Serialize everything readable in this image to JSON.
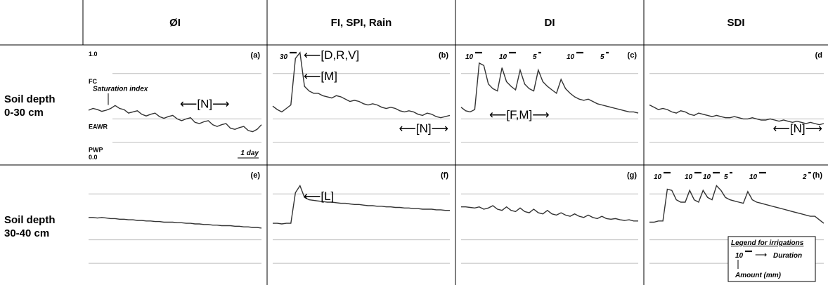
{
  "chart_data": {
    "type": "line",
    "columns": [
      "ØI",
      "FI, SPI, Rain",
      "DI",
      "SDI"
    ],
    "rows": [
      "Soil depth\n0-30 cm",
      "Soil depth\n30-40 cm"
    ],
    "levels": {
      "top": "1.0",
      "bottom": "0.0",
      "names": [
        "FC",
        "EAWR",
        "PWP"
      ],
      "fractions": [
        0.77,
        0.38,
        0.18
      ]
    },
    "scale_label": "1 day",
    "saturation_label": "Saturation index",
    "legend": {
      "title": "Legend for irrigations",
      "example_amount": "10",
      "duration_label": "Duration",
      "amount_label": "Amount (mm)"
    },
    "panels": [
      {
        "id": "a",
        "label": "(a)",
        "values": [
          0.455,
          0.47,
          0.46,
          0.445,
          0.455,
          0.47,
          0.495,
          0.47,
          0.46,
          0.43,
          0.44,
          0.45,
          0.42,
          0.405,
          0.42,
          0.43,
          0.4,
          0.385,
          0.4,
          0.41,
          0.38,
          0.365,
          0.38,
          0.39,
          0.35,
          0.34,
          0.355,
          0.365,
          0.33,
          0.315,
          0.33,
          0.34,
          0.3,
          0.29,
          0.305,
          0.315,
          0.28,
          0.27,
          0.29,
          0.33
        ],
        "annotations": [
          {
            "text": "⟵[N]⟶",
            "pos": "right-middle"
          }
        ]
      },
      {
        "id": "b",
        "label": "(b)",
        "values": [
          0.49,
          0.46,
          0.44,
          0.47,
          0.5,
          0.9,
          0.95,
          0.66,
          0.62,
          0.6,
          0.6,
          0.58,
          0.57,
          0.56,
          0.58,
          0.57,
          0.55,
          0.53,
          0.54,
          0.53,
          0.51,
          0.5,
          0.51,
          0.5,
          0.48,
          0.47,
          0.48,
          0.47,
          0.45,
          0.44,
          0.45,
          0.44,
          0.42,
          0.41,
          0.43,
          0.42,
          0.4,
          0.39,
          0.4,
          0.41
        ],
        "irrigations": [
          {
            "amount": "30",
            "duration": "long"
          }
        ],
        "annotations": [
          {
            "text": "⟵[D,R,V]",
            "pos": "top"
          },
          {
            "text": "⟵[M]",
            "pos": "upper"
          },
          {
            "text": "⟵[N]⟶",
            "pos": "lower-right"
          }
        ]
      },
      {
        "id": "c",
        "label": "(c)",
        "values": [
          0.48,
          0.45,
          0.44,
          0.46,
          0.86,
          0.84,
          0.68,
          0.64,
          0.62,
          0.82,
          0.7,
          0.66,
          0.63,
          0.8,
          0.68,
          0.64,
          0.62,
          0.8,
          0.7,
          0.66,
          0.63,
          0.6,
          0.72,
          0.64,
          0.6,
          0.57,
          0.55,
          0.54,
          0.55,
          0.53,
          0.51,
          0.5,
          0.49,
          0.48,
          0.47,
          0.46,
          0.45,
          0.44,
          0.44,
          0.43
        ],
        "irrigations": [
          {
            "amount": "10",
            "duration": "long"
          },
          {
            "amount": "10",
            "duration": "long"
          },
          {
            "amount": "5",
            "duration": "short"
          },
          {
            "amount": "10",
            "duration": "long"
          },
          {
            "amount": "5",
            "duration": "short"
          }
        ],
        "annotations": [
          {
            "text": "⟵[F,M]⟶",
            "pos": "middle"
          }
        ]
      },
      {
        "id": "d",
        "label": "(d",
        "values": [
          0.5,
          0.48,
          0.46,
          0.47,
          0.46,
          0.44,
          0.43,
          0.45,
          0.44,
          0.42,
          0.41,
          0.43,
          0.42,
          0.41,
          0.4,
          0.41,
          0.4,
          0.39,
          0.39,
          0.4,
          0.39,
          0.38,
          0.38,
          0.39,
          0.38,
          0.37,
          0.37,
          0.38,
          0.37,
          0.36,
          0.37,
          0.36,
          0.35,
          0.36,
          0.35,
          0.34,
          0.35,
          0.34,
          0.33,
          0.34
        ],
        "annotations": [
          {
            "text": "⟵[N]⟶",
            "pos": "lower-right"
          }
        ]
      },
      {
        "id": "e",
        "label": "(e)",
        "values": [
          0.57,
          0.57,
          0.565,
          0.57,
          0.565,
          0.56,
          0.56,
          0.555,
          0.555,
          0.55,
          0.55,
          0.545,
          0.545,
          0.54,
          0.54,
          0.535,
          0.535,
          0.53,
          0.53,
          0.53,
          0.525,
          0.525,
          0.52,
          0.52,
          0.515,
          0.515,
          0.51,
          0.51,
          0.505,
          0.505,
          0.5,
          0.5,
          0.5,
          0.495,
          0.495,
          0.49,
          0.49,
          0.485,
          0.485,
          0.48
        ],
        "annotations": []
      },
      {
        "id": "f",
        "label": "(f)",
        "values": [
          0.52,
          0.52,
          0.515,
          0.52,
          0.52,
          0.78,
          0.84,
          0.74,
          0.72,
          0.715,
          0.71,
          0.705,
          0.7,
          0.7,
          0.695,
          0.69,
          0.69,
          0.685,
          0.68,
          0.68,
          0.675,
          0.67,
          0.67,
          0.665,
          0.665,
          0.66,
          0.66,
          0.655,
          0.655,
          0.65,
          0.65,
          0.645,
          0.645,
          0.64,
          0.64,
          0.64,
          0.635,
          0.635,
          0.63,
          0.63
        ],
        "annotations": [
          {
            "text": "⟵[L]",
            "pos": "upper"
          }
        ]
      },
      {
        "id": "g",
        "label": "(g)",
        "values": [
          0.66,
          0.66,
          0.655,
          0.65,
          0.66,
          0.64,
          0.65,
          0.67,
          0.64,
          0.63,
          0.66,
          0.63,
          0.62,
          0.65,
          0.62,
          0.61,
          0.64,
          0.61,
          0.6,
          0.63,
          0.6,
          0.59,
          0.61,
          0.59,
          0.58,
          0.6,
          0.58,
          0.57,
          0.59,
          0.57,
          0.56,
          0.58,
          0.56,
          0.555,
          0.56,
          0.55,
          0.545,
          0.55,
          0.54,
          0.54
        ],
        "annotations": []
      },
      {
        "id": "h",
        "label": "(h)",
        "values": [
          0.53,
          0.53,
          0.54,
          0.54,
          0.81,
          0.8,
          0.72,
          0.7,
          0.7,
          0.8,
          0.72,
          0.7,
          0.8,
          0.74,
          0.72,
          0.84,
          0.8,
          0.74,
          0.72,
          0.71,
          0.7,
          0.69,
          0.79,
          0.72,
          0.7,
          0.69,
          0.68,
          0.67,
          0.66,
          0.65,
          0.64,
          0.63,
          0.62,
          0.61,
          0.6,
          0.59,
          0.58,
          0.58,
          0.55,
          0.52
        ],
        "irrigations": [
          {
            "amount": "10",
            "duration": "long"
          },
          {
            "amount": "10",
            "duration": "long"
          },
          {
            "amount": "10",
            "duration": "long"
          },
          {
            "amount": "5",
            "duration": "short"
          },
          {
            "amount": "10",
            "duration": "long"
          },
          {
            "amount": "2",
            "duration": "short"
          }
        ],
        "annotations": []
      }
    ],
    "grid": true
  }
}
